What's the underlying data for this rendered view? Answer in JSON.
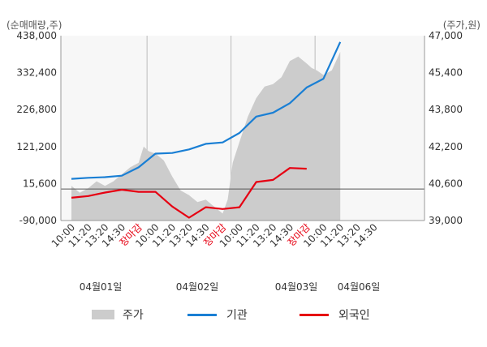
{
  "chart_data": {
    "type": "line",
    "left_axis_title": "(순매매량,주)",
    "right_axis_title": "(주가,원)",
    "left_ticks": [
      "438,000",
      "332,400",
      "226,800",
      "121,200",
      "15,600",
      "-90,000"
    ],
    "left_tick_values": [
      438000,
      332400,
      226800,
      121200,
      15600,
      -90000
    ],
    "right_ticks": [
      "47,000",
      "45,400",
      "43,800",
      "42,200",
      "40,600",
      "39,000"
    ],
    "right_tick_values": [
      47000,
      45400,
      43800,
      42200,
      40600,
      39000
    ],
    "ylim_left": [
      -90000,
      438000
    ],
    "ylim_right": [
      39000,
      47000
    ],
    "x_ticks": [
      {
        "label": "10:00",
        "color": "normal"
      },
      {
        "label": "11:20",
        "color": "normal"
      },
      {
        "label": "13:20",
        "color": "normal"
      },
      {
        "label": "14:30",
        "color": "normal"
      },
      {
        "label": "장마감",
        "color": "red"
      },
      {
        "label": "10:00",
        "color": "normal"
      },
      {
        "label": "11:20",
        "color": "normal"
      },
      {
        "label": "13:20",
        "color": "normal"
      },
      {
        "label": "14:30",
        "color": "normal"
      },
      {
        "label": "장마감",
        "color": "red"
      },
      {
        "label": "10:00",
        "color": "normal"
      },
      {
        "label": "11:20",
        "color": "normal"
      },
      {
        "label": "13:20",
        "color": "normal"
      },
      {
        "label": "14:30",
        "color": "normal"
      },
      {
        "label": "장마감",
        "color": "red"
      },
      {
        "label": "10:00",
        "color": "normal"
      },
      {
        "label": "11:20",
        "color": "normal"
      },
      {
        "label": "13:20",
        "color": "normal"
      },
      {
        "label": "14:30",
        "color": "normal"
      }
    ],
    "dates": [
      {
        "label": "04월01일",
        "start_index": 0
      },
      {
        "label": "04월02일",
        "start_index": 5
      },
      {
        "label": "04월03일",
        "start_index": 10
      },
      {
        "label": "04월06일",
        "start_index": 14
      }
    ],
    "session_boundaries": [
      4,
      9,
      14
    ],
    "price": {
      "name": "주가",
      "axis": "right",
      "color": "#cccccc",
      "x": [
        0,
        0.5,
        1,
        1.5,
        2,
        2.5,
        3,
        3.5,
        4,
        4.3,
        4.6,
        5,
        5.5,
        6,
        6.5,
        7,
        7.5,
        8,
        8.5,
        9,
        9.3,
        9.6,
        10,
        10.5,
        11,
        11.5,
        12,
        12.5,
        13,
        13.5,
        14,
        14.3,
        14.6,
        15,
        15.5,
        16
      ],
      "values": [
        40.5,
        40.2,
        40.4,
        40.7,
        40.5,
        40.7,
        41.0,
        41.3,
        41.5,
        42.2,
        42.0,
        41.9,
        41.6,
        40.9,
        40.3,
        40.1,
        39.8,
        39.9,
        39.6,
        39.3,
        39.9,
        41.5,
        42.4,
        43.5,
        44.3,
        44.8,
        44.9,
        45.2,
        45.9,
        46.1,
        45.8,
        45.6,
        45.5,
        45.3,
        45.5,
        46.3
      ]
    },
    "series": [
      {
        "name": "기관",
        "axis": "left",
        "color": "#1a7fd4",
        "x": [
          0,
          1,
          2,
          3,
          4,
          5,
          6,
          7,
          8,
          9,
          10,
          11,
          12,
          13,
          14,
          15,
          16
        ],
        "values": [
          29000,
          32000,
          34000,
          38000,
          62000,
          101000,
          103000,
          113000,
          129000,
          133000,
          160000,
          207000,
          218000,
          245000,
          290000,
          315000,
          420000
        ]
      },
      {
        "name": "외국인",
        "axis": "left",
        "color": "#e60012",
        "x": [
          0,
          1,
          2,
          3,
          4,
          5,
          6,
          7,
          8,
          9,
          10,
          11,
          12,
          13,
          14
        ],
        "values": [
          -25000,
          -20000,
          -10000,
          -2000,
          -8000,
          -8000,
          -50000,
          -82000,
          -52000,
          -57000,
          -52000,
          20000,
          26000,
          60000,
          58000
        ]
      }
    ]
  },
  "legend": {
    "price_label": "주가",
    "institution_label": "기관",
    "foreign_label": "외국인"
  }
}
